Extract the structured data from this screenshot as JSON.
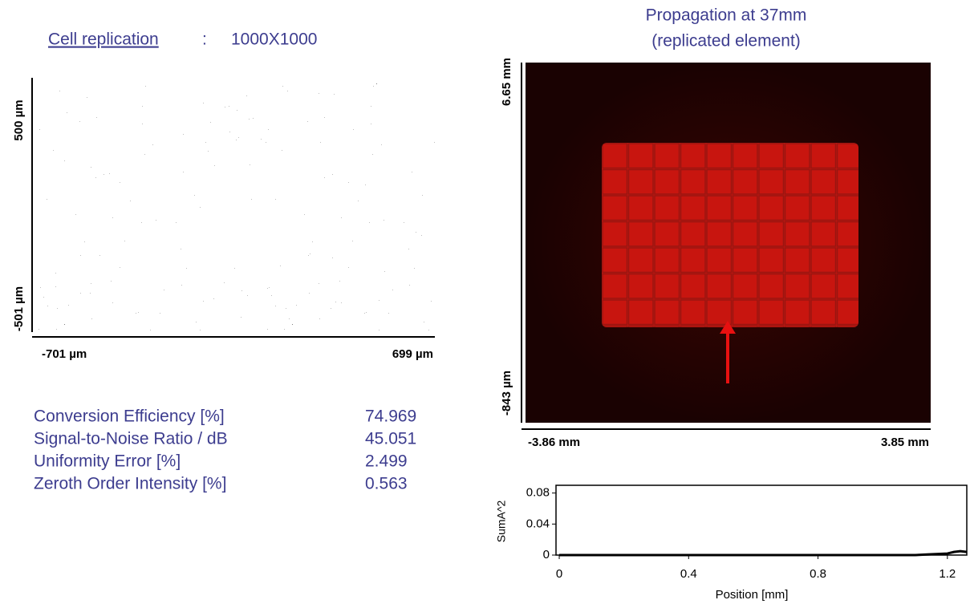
{
  "cell_replication": {
    "label": "Cell replication",
    "separator": ":",
    "value": "1000X1000"
  },
  "element_axes": {
    "y_top": "500 µm",
    "y_bottom": "-501 µm",
    "x_left": "-701 µm",
    "x_right": "699 µm"
  },
  "metrics": [
    {
      "name": "Conversion Efficiency [%]",
      "value": "74.969"
    },
    {
      "name": "Signal-to-Noise Ratio / dB",
      "value": "45.051"
    },
    {
      "name": "Uniformity Error [%]",
      "value": "2.499"
    },
    {
      "name": "Zeroth Order Intensity [%]",
      "value": "0.563"
    }
  ],
  "propagation": {
    "title": "Propagation at 37mm",
    "subtitle": "(replicated element)",
    "y_top": "6.65 mm",
    "y_bottom": "-843 µm",
    "x_left": "-3.86 mm",
    "x_right": "3.85 mm"
  },
  "chart_data": {
    "type": "line",
    "x_label": "Position [mm]",
    "y_label": "SumA^2",
    "color": "#000000",
    "x": [
      0,
      0.2,
      0.4,
      0.6,
      0.8,
      1.0,
      1.1,
      1.15,
      1.2,
      1.22,
      1.24,
      1.26
    ],
    "values": [
      0,
      0,
      0,
      0,
      0,
      0,
      0,
      0.001,
      0.002,
      0.004,
      0.005,
      0.004
    ],
    "xlim": [
      -0.01,
      1.26
    ],
    "ylim": [
      0,
      0.09
    ],
    "xticks": [
      0,
      0.4,
      0.8,
      1.2
    ],
    "yticks": [
      0,
      0.04,
      0.08
    ]
  }
}
